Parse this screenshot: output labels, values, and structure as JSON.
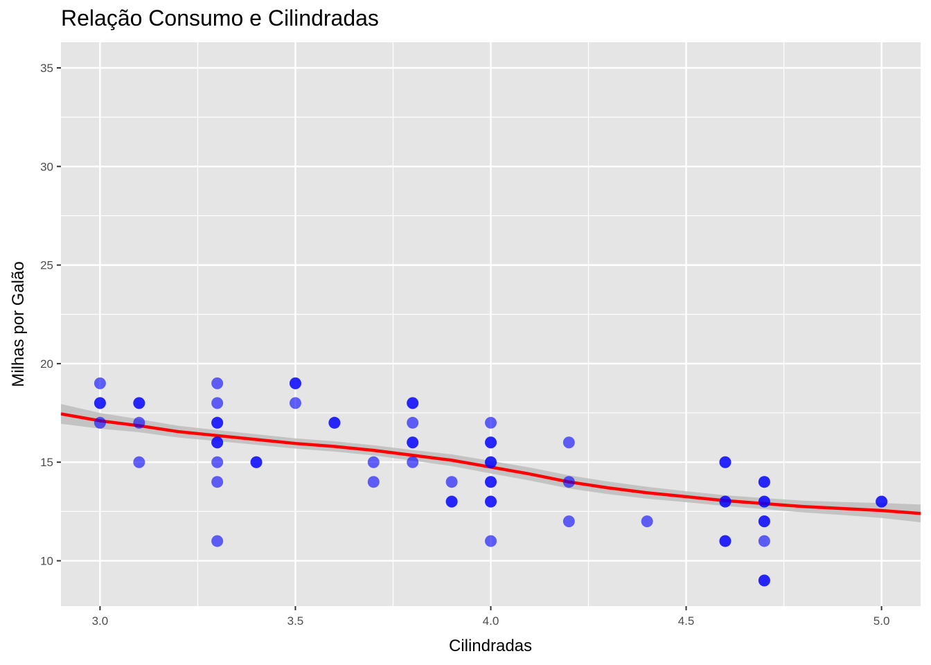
{
  "chart_data": {
    "type": "scatter",
    "title": "Relação Consumo e Cilindradas",
    "xlabel": "Cilindradas",
    "ylabel": "Milhas por Galão",
    "xlim": [
      2.9,
      5.1
    ],
    "ylim": [
      7.7,
      36.3
    ],
    "x_ticks": [
      3.0,
      3.5,
      4.0,
      4.5,
      5.0
    ],
    "x_tick_labels": [
      "3.0",
      "3.5",
      "4.0",
      "4.5",
      "5.0"
    ],
    "y_ticks": [
      10,
      15,
      20,
      25,
      30,
      35
    ],
    "y_tick_labels": [
      "10",
      "15",
      "20",
      "25",
      "30",
      "35"
    ],
    "grid": true,
    "legend": "none",
    "colors": {
      "panel_background": "#e5e5e5",
      "grid": "#ffffff",
      "points": "#0000ff",
      "smooth_line": "#ff0000",
      "confidence_band": "#bdbdbd"
    },
    "series": [
      {
        "type": "scatter",
        "points": [
          [
            3.0,
            19
          ],
          [
            3.0,
            18
          ],
          [
            3.0,
            18
          ],
          [
            3.0,
            17
          ],
          [
            3.1,
            18
          ],
          [
            3.1,
            18
          ],
          [
            3.1,
            17
          ],
          [
            3.1,
            15
          ],
          [
            3.3,
            19
          ],
          [
            3.3,
            18
          ],
          [
            3.3,
            17
          ],
          [
            3.3,
            17
          ],
          [
            3.3,
            16
          ],
          [
            3.3,
            16
          ],
          [
            3.3,
            15
          ],
          [
            3.3,
            14
          ],
          [
            3.3,
            11
          ],
          [
            3.4,
            15
          ],
          [
            3.4,
            15
          ],
          [
            3.5,
            19
          ],
          [
            3.5,
            19
          ],
          [
            3.5,
            18
          ],
          [
            3.6,
            17
          ],
          [
            3.6,
            17
          ],
          [
            3.7,
            15
          ],
          [
            3.7,
            14
          ],
          [
            3.8,
            18
          ],
          [
            3.8,
            18
          ],
          [
            3.8,
            17
          ],
          [
            3.8,
            16
          ],
          [
            3.8,
            16
          ],
          [
            3.8,
            15
          ],
          [
            3.9,
            14
          ],
          [
            3.9,
            13
          ],
          [
            3.9,
            13
          ],
          [
            4.0,
            17
          ],
          [
            4.0,
            16
          ],
          [
            4.0,
            16
          ],
          [
            4.0,
            15
          ],
          [
            4.0,
            15
          ],
          [
            4.0,
            14
          ],
          [
            4.0,
            14
          ],
          [
            4.0,
            13
          ],
          [
            4.0,
            13
          ],
          [
            4.0,
            11
          ],
          [
            4.2,
            16
          ],
          [
            4.2,
            14
          ],
          [
            4.2,
            12
          ],
          [
            4.4,
            12
          ],
          [
            4.6,
            15
          ],
          [
            4.6,
            15
          ],
          [
            4.6,
            13
          ],
          [
            4.6,
            13
          ],
          [
            4.6,
            11
          ],
          [
            4.6,
            11
          ],
          [
            4.7,
            14
          ],
          [
            4.7,
            14
          ],
          [
            4.7,
            13
          ],
          [
            4.7,
            13
          ],
          [
            4.7,
            12
          ],
          [
            4.7,
            12
          ],
          [
            4.7,
            11
          ],
          [
            4.7,
            9
          ],
          [
            4.7,
            9
          ],
          [
            5.0,
            13
          ],
          [
            5.0,
            13
          ]
        ]
      },
      {
        "type": "smooth",
        "points": [
          [
            2.9,
            17.45
          ],
          [
            3.0,
            17.1
          ],
          [
            3.1,
            16.85
          ],
          [
            3.2,
            16.55
          ],
          [
            3.3,
            16.35
          ],
          [
            3.4,
            16.15
          ],
          [
            3.5,
            15.95
          ],
          [
            3.6,
            15.8
          ],
          [
            3.7,
            15.6
          ],
          [
            3.8,
            15.35
          ],
          [
            3.9,
            15.1
          ],
          [
            4.0,
            14.75
          ],
          [
            4.1,
            14.4
          ],
          [
            4.2,
            14.0
          ],
          [
            4.3,
            13.7
          ],
          [
            4.4,
            13.45
          ],
          [
            4.5,
            13.25
          ],
          [
            4.6,
            13.05
          ],
          [
            4.7,
            12.9
          ],
          [
            4.8,
            12.75
          ],
          [
            4.9,
            12.65
          ],
          [
            5.0,
            12.55
          ],
          [
            5.1,
            12.4
          ]
        ],
        "band_halfwidth": [
          0.5,
          0.4,
          0.33,
          0.3,
          0.28,
          0.27,
          0.26,
          0.26,
          0.26,
          0.27,
          0.3,
          0.32,
          0.33,
          0.33,
          0.32,
          0.3,
          0.28,
          0.27,
          0.28,
          0.3,
          0.33,
          0.38,
          0.45
        ]
      }
    ]
  }
}
